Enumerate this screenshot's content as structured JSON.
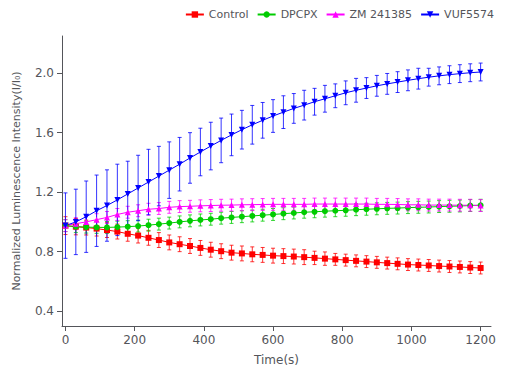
{
  "chart_data": {
    "type": "line",
    "xlabel": "Time(s)",
    "ylabel": "Normalized Luminescence Intensity(I/I₀)",
    "xlim": [
      -10,
      1230
    ],
    "ylim": [
      0.3,
      2.25
    ],
    "xticks": [
      0,
      200,
      400,
      600,
      800,
      1000,
      1200
    ],
    "yticks": [
      0.4,
      0.8,
      1.2,
      1.6,
      {
        "value": 2.0,
        "label": "2.0"
      }
    ],
    "grid": false,
    "legend": "upper right",
    "x": [
      0,
      30,
      60,
      90,
      120,
      150,
      180,
      210,
      240,
      270,
      300,
      330,
      360,
      390,
      420,
      450,
      480,
      510,
      540,
      570,
      600,
      630,
      660,
      690,
      720,
      750,
      780,
      810,
      840,
      870,
      900,
      930,
      960,
      990,
      1020,
      1050,
      1080,
      1110,
      1140,
      1170,
      1200
    ],
    "series": [
      {
        "name": "Control",
        "color": "#FF0000",
        "marker": "square",
        "values": [
          0.975,
          0.968,
          0.962,
          0.955,
          0.945,
          0.935,
          0.92,
          0.908,
          0.893,
          0.878,
          0.862,
          0.85,
          0.838,
          0.825,
          0.813,
          0.803,
          0.793,
          0.788,
          0.782,
          0.778,
          0.773,
          0.77,
          0.767,
          0.763,
          0.758,
          0.753,
          0.748,
          0.743,
          0.738,
          0.733,
          0.728,
          0.723,
          0.718,
          0.713,
          0.71,
          0.707,
          0.703,
          0.7,
          0.697,
          0.693,
          0.69
        ],
        "yerr": [
          0.06,
          0.055,
          0.05,
          0.05,
          0.05,
          0.05,
          0.05,
          0.05,
          0.05,
          0.05,
          0.05,
          0.05,
          0.05,
          0.05,
          0.05,
          0.05,
          0.05,
          0.05,
          0.05,
          0.05,
          0.05,
          0.05,
          0.05,
          0.05,
          0.045,
          0.045,
          0.04,
          0.04,
          0.04,
          0.04,
          0.04,
          0.04,
          0.04,
          0.04,
          0.04,
          0.04,
          0.04,
          0.04,
          0.04,
          0.04,
          0.04
        ]
      },
      {
        "name": "DPCPX",
        "color": "#00CC00",
        "marker": "circle",
        "values": [
          0.975,
          0.968,
          0.965,
          0.963,
          0.963,
          0.965,
          0.968,
          0.972,
          0.978,
          0.985,
          0.992,
          1.0,
          1.007,
          1.013,
          1.018,
          1.025,
          1.03,
          1.035,
          1.04,
          1.045,
          1.05,
          1.055,
          1.06,
          1.065,
          1.068,
          1.072,
          1.075,
          1.078,
          1.082,
          1.085,
          1.088,
          1.091,
          1.093,
          1.096,
          1.098,
          1.1,
          1.103,
          1.105,
          1.107,
          1.11,
          1.112
        ],
        "yerr": [
          0.04,
          0.04,
          0.04,
          0.04,
          0.04,
          0.04,
          0.04,
          0.04,
          0.04,
          0.04,
          0.04,
          0.04,
          0.04,
          0.04,
          0.04,
          0.04,
          0.04,
          0.04,
          0.04,
          0.04,
          0.04,
          0.04,
          0.04,
          0.04,
          0.04,
          0.04,
          0.04,
          0.04,
          0.04,
          0.04,
          0.04,
          0.04,
          0.04,
          0.04,
          0.04,
          0.04,
          0.04,
          0.04,
          0.04,
          0.04,
          0.04
        ]
      },
      {
        "name": "ZM 241385",
        "color": "#FF00FF",
        "marker": "triangle-up",
        "values": [
          0.975,
          0.988,
          1.0,
          1.015,
          1.03,
          1.05,
          1.065,
          1.075,
          1.085,
          1.09,
          1.098,
          1.103,
          1.105,
          1.108,
          1.11,
          1.112,
          1.113,
          1.115,
          1.116,
          1.117,
          1.118,
          1.118,
          1.118,
          1.118,
          1.12,
          1.12,
          1.12,
          1.12,
          1.12,
          1.12,
          1.118,
          1.118,
          1.117,
          1.115,
          1.115,
          1.113,
          1.113,
          1.113,
          1.112,
          1.112,
          1.11
        ],
        "yerr": [
          0.04,
          0.04,
          0.04,
          0.04,
          0.04,
          0.04,
          0.04,
          0.04,
          0.04,
          0.04,
          0.04,
          0.04,
          0.04,
          0.04,
          0.04,
          0.04,
          0.04,
          0.04,
          0.04,
          0.04,
          0.04,
          0.04,
          0.04,
          0.04,
          0.04,
          0.04,
          0.04,
          0.04,
          0.04,
          0.04,
          0.04,
          0.04,
          0.04,
          0.04,
          0.04,
          0.04,
          0.04,
          0.04,
          0.04,
          0.04,
          0.04
        ]
      },
      {
        "name": "VUF5574",
        "color": "#0000FF",
        "marker": "triangle-down",
        "values": [
          0.975,
          1.0,
          1.035,
          1.075,
          1.11,
          1.148,
          1.188,
          1.228,
          1.268,
          1.308,
          1.348,
          1.388,
          1.43,
          1.47,
          1.51,
          1.548,
          1.585,
          1.62,
          1.653,
          1.683,
          1.712,
          1.738,
          1.763,
          1.785,
          1.808,
          1.828,
          1.848,
          1.868,
          1.885,
          1.9,
          1.915,
          1.928,
          1.94,
          1.952,
          1.963,
          1.973,
          1.982,
          1.99,
          1.997,
          2.003,
          2.008
        ],
        "yerr": [
          0.22,
          0.22,
          0.24,
          0.24,
          0.24,
          0.24,
          0.22,
          0.22,
          0.22,
          0.2,
          0.19,
          0.18,
          0.17,
          0.16,
          0.16,
          0.15,
          0.14,
          0.13,
          0.13,
          0.12,
          0.11,
          0.11,
          0.1,
          0.1,
          0.09,
          0.09,
          0.08,
          0.08,
          0.08,
          0.07,
          0.07,
          0.07,
          0.07,
          0.07,
          0.07,
          0.06,
          0.06,
          0.06,
          0.06,
          0.06,
          0.06
        ]
      }
    ]
  }
}
